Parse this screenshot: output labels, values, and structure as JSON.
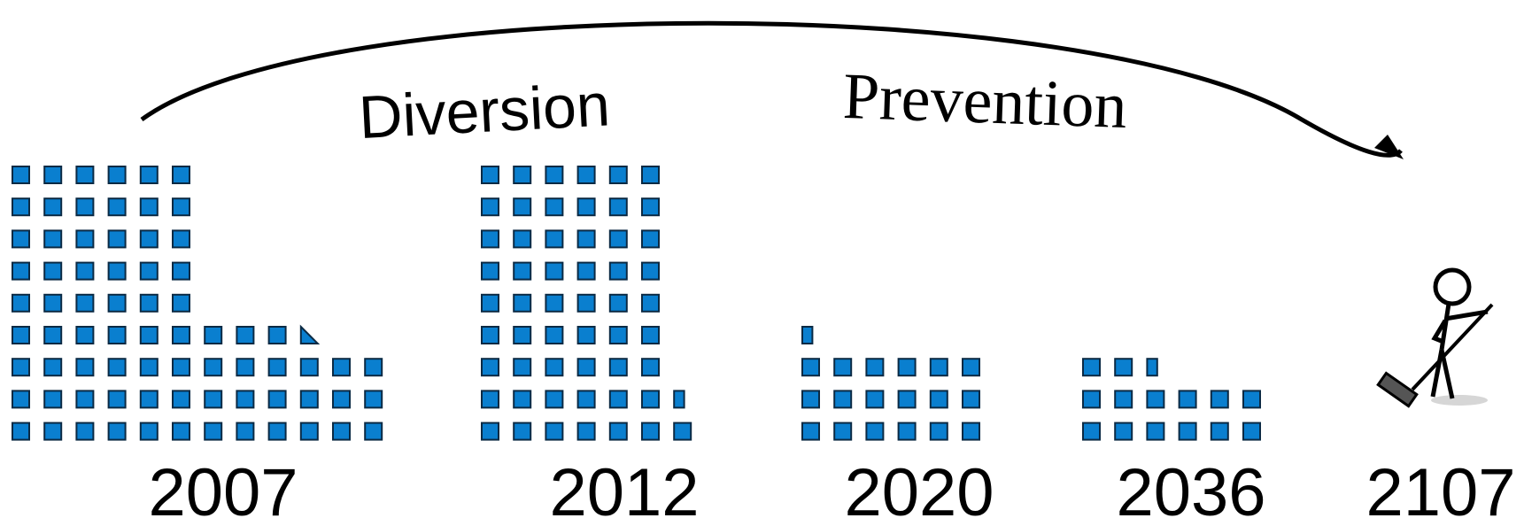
{
  "labels": {
    "diversion": "Diversion",
    "prevention": "Prevention"
  },
  "colors": {
    "square_fill": "#0a7fcf",
    "square_stroke": "#0b2a44",
    "arrow": "#000000"
  },
  "groups": [
    {
      "year": "2007",
      "rows": [
        6,
        6,
        6,
        6,
        6,
        9,
        12,
        12,
        12
      ],
      "partial": [
        {
          "row": 5,
          "col": 9,
          "shape": "triangle"
        }
      ]
    },
    {
      "year": "2012",
      "rows": [
        6,
        6,
        6,
        6,
        6,
        6,
        6,
        6,
        6
      ],
      "partial": [
        {
          "row": 7,
          "col": 6,
          "shape": "half"
        },
        {
          "row": 8,
          "col": 6,
          "shape": "full"
        }
      ]
    },
    {
      "year": "2020",
      "rows": [
        0,
        0,
        0,
        0,
        0,
        0,
        6,
        6,
        6
      ],
      "partial": [
        {
          "row": 5,
          "col": 0,
          "shape": "half"
        }
      ]
    },
    {
      "year": "2036",
      "rows": [
        0,
        0,
        0,
        0,
        0,
        0,
        2,
        6,
        6
      ],
      "partial": [
        {
          "row": 6,
          "col": 2,
          "shape": "half"
        }
      ]
    },
    {
      "year": "2107",
      "rows": [],
      "partial": [],
      "figure": "stick-figure-sweeping-icon"
    }
  ]
}
